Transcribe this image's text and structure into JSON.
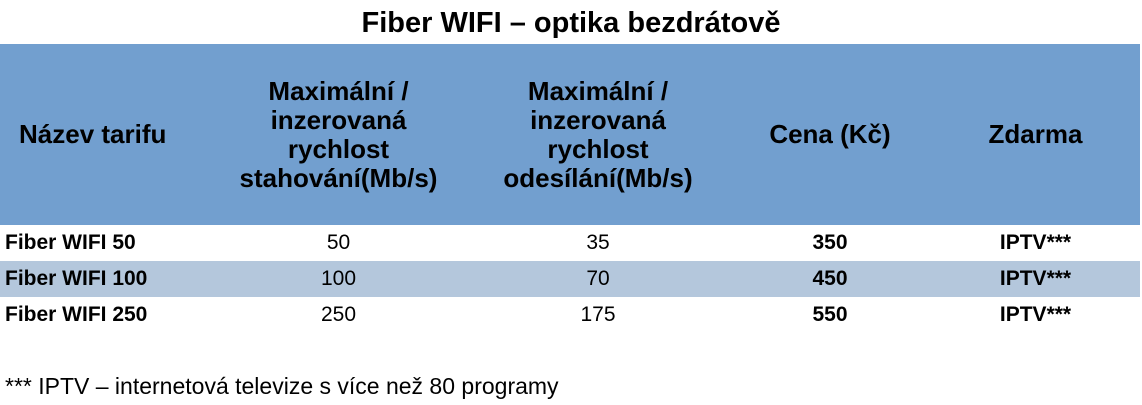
{
  "title": "Fiber WIFI – optika bezdrátově",
  "table": {
    "headers": [
      "Název tarifu",
      "Maximální / inzerovaná rychlost stahování(Mb/s)",
      "Maximální / inzerovaná rychlost odesílání(Mb/s)",
      "Cena (Kč)",
      "Zdarma"
    ],
    "header_lines": {
      "download": [
        "Maximální /",
        "inzerovaná",
        "rychlost",
        "stahování(Mb/s)"
      ],
      "upload": [
        "Maximální /",
        "inzerovaná",
        "rychlost",
        "odesílání(Mb/s)"
      ]
    },
    "rows": [
      {
        "name": "Fiber WIFI 50",
        "download": "50",
        "upload": "35",
        "price": "350",
        "free": "IPTV***"
      },
      {
        "name": "Fiber WIFI 100",
        "download": "100",
        "upload": "70",
        "price": "450",
        "free": "IPTV***"
      },
      {
        "name": "Fiber WIFI 250",
        "download": "250",
        "upload": "175",
        "price": "550",
        "free": "IPTV***"
      }
    ]
  },
  "footnote": "*** IPTV – internetová televize s více než 80 programy",
  "colors": {
    "header_bg": "#729fcf",
    "shaded_row_bg": "#b4c7dc"
  }
}
